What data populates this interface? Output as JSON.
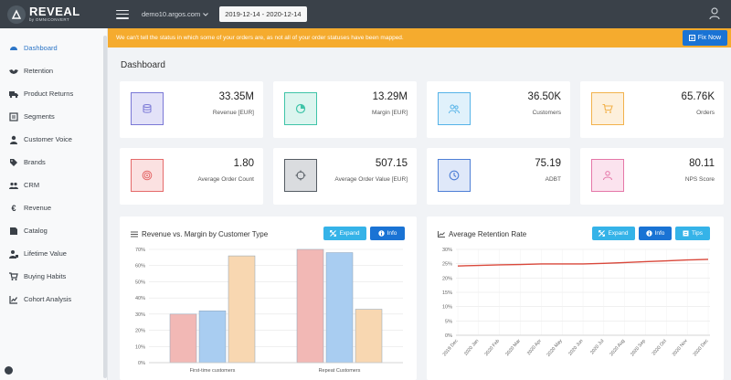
{
  "header": {
    "logo": "REVEAL",
    "logo_sub": "by OMNICONVERT",
    "domain": "demo10.argos.com",
    "date_range": "2019-12-14 - 2020-12-14"
  },
  "sidebar": {
    "items": [
      {
        "label": "Dashboard",
        "icon": "speedometer-icon",
        "active": true
      },
      {
        "label": "Retention",
        "icon": "handshake-icon"
      },
      {
        "label": "Product Returns",
        "icon": "truck-icon"
      },
      {
        "label": "Segments",
        "icon": "list-icon"
      },
      {
        "label": "Customer Voice",
        "icon": "person-icon"
      },
      {
        "label": "Brands",
        "icon": "tag-icon"
      },
      {
        "label": "CRM",
        "icon": "users-icon"
      },
      {
        "label": "Revenue",
        "icon": "euro-icon"
      },
      {
        "label": "Catalog",
        "icon": "book-icon"
      },
      {
        "label": "Lifetime Value",
        "icon": "person-money-icon"
      },
      {
        "label": "Buying Habits",
        "icon": "cart-icon"
      },
      {
        "label": "Cohort Analysis",
        "icon": "line-chart-icon"
      }
    ]
  },
  "banner": {
    "text": "We can't tell the status in which some of your orders are, as not all of your order statuses have been mapped.",
    "button": "Fix Now"
  },
  "main": {
    "title": "Dashboard",
    "kpis": [
      {
        "value": "33.35M",
        "label": "Revenue [EUR]",
        "icon": "database-icon",
        "color": "#7a78d6",
        "bg": "#e3e2f8"
      },
      {
        "value": "13.29M",
        "label": "Margin [EUR]",
        "icon": "pie-icon",
        "color": "#3fc4a8",
        "bg": "#dcf5ef"
      },
      {
        "value": "36.50K",
        "label": "Customers",
        "icon": "users-icon",
        "color": "#55b3e8",
        "bg": "#e0f1fb"
      },
      {
        "value": "65.76K",
        "label": "Orders",
        "icon": "cart-icon",
        "color": "#f2b24c",
        "bg": "#fdf0dc"
      },
      {
        "value": "1.80",
        "label": "Average Order Count",
        "icon": "target-icon",
        "color": "#e56a6a",
        "bg": "#fbe1e1"
      },
      {
        "value": "507.15",
        "label": "Average Order Value [EUR]",
        "icon": "crosshair-icon",
        "color": "#555c63",
        "bg": "#dadcdf"
      },
      {
        "value": "75.19",
        "label": "ADBT",
        "icon": "clock-icon",
        "color": "#4e7fd6",
        "bg": "#dfe8f9"
      },
      {
        "value": "80.11",
        "label": "NPS Score",
        "icon": "person-icon",
        "color": "#e577a8",
        "bg": "#fbe3ee"
      }
    ]
  },
  "panels": {
    "revenue_margin": {
      "title": "Revenue vs. Margin by Customer Type",
      "expand": "Expand",
      "info": "Info"
    },
    "retention": {
      "title": "Average Retention Rate",
      "expand": "Expand",
      "info": "Info",
      "tips": "Tips"
    }
  },
  "chart_data": [
    {
      "type": "bar",
      "title": "Revenue vs. Margin by Customer Type",
      "categories": [
        "First-time customers",
        "Repeat Customers"
      ],
      "series": [
        {
          "values": [
            30,
            70
          ],
          "color": "#f2b8b5"
        },
        {
          "values": [
            32,
            68
          ],
          "color": "#a9cdf1"
        },
        {
          "values": [
            66,
            33
          ],
          "color": "#f8d7b1"
        }
      ],
      "yticks": [
        "0%",
        "10%",
        "20%",
        "30%",
        "40%",
        "50%",
        "60%",
        "70%"
      ],
      "ylim": [
        0,
        70
      ],
      "grid": true
    },
    {
      "type": "line",
      "title": "Average Retention Rate",
      "x": [
        "2019 Dec",
        "2020 Jan",
        "2020 Feb",
        "2020 Mar",
        "2020 Apr",
        "2020 May",
        "2020 Jun",
        "2020 Jul",
        "2020 Aug",
        "2020 Sep",
        "2020 Oct",
        "2020 Nov",
        "2020 Dec"
      ],
      "series": [
        {
          "values": [
            24.2,
            24.4,
            24.6,
            24.7,
            24.9,
            24.9,
            24.9,
            25.1,
            25.4,
            25.7,
            26.0,
            26.3,
            26.5
          ],
          "color": "#d9483b"
        }
      ],
      "yticks": [
        "0%",
        "5%",
        "10%",
        "15%",
        "20%",
        "25%",
        "30%"
      ],
      "ylim": [
        0,
        30
      ],
      "grid": true
    }
  ]
}
